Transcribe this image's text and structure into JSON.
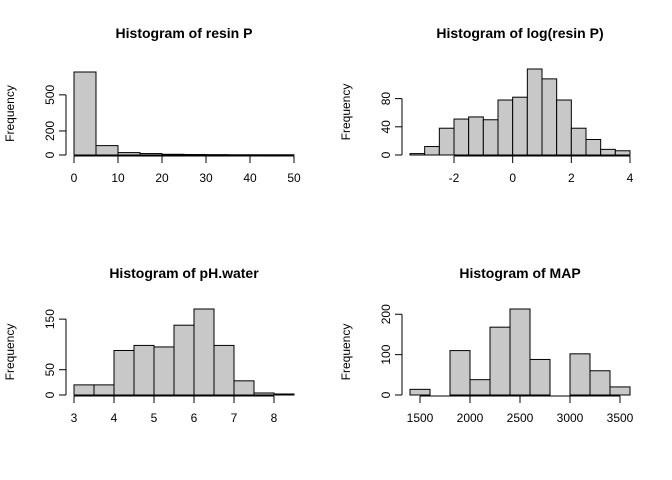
{
  "chart_data": [
    {
      "type": "bar",
      "title": "Histogram of resin P",
      "xlabel": "",
      "ylabel": "Frequency",
      "bin_edges": [
        0,
        5,
        10,
        15,
        20,
        25,
        30,
        35,
        40,
        45,
        50
      ],
      "values": [
        690,
        78,
        20,
        12,
        6,
        4,
        3,
        2,
        2,
        2
      ],
      "xlim": [
        0,
        50
      ],
      "ylim": [
        0,
        690
      ],
      "xticks": [
        0,
        10,
        20,
        30,
        40,
        50
      ],
      "yticks": [
        0,
        200,
        500
      ],
      "bar_color": "#c8c8c8"
    },
    {
      "type": "bar",
      "title": "Histogram of log(resin P)",
      "xlabel": "",
      "ylabel": "Frequency",
      "bin_edges": [
        -3.5,
        -3,
        -2.5,
        -2,
        -1.5,
        -1,
        -0.5,
        0,
        0.5,
        1,
        1.5,
        2,
        2.5,
        3,
        3.5,
        4
      ],
      "values": [
        2,
        12,
        38,
        51,
        54,
        50,
        78,
        82,
        122,
        108,
        78,
        38,
        22,
        8,
        6
      ],
      "xlim": [
        -3.5,
        4
      ],
      "ylim": [
        0,
        122
      ],
      "xticks": [
        -2,
        0,
        2,
        4
      ],
      "yticks": [
        0,
        40,
        80
      ],
      "bar_color": "#c8c8c8"
    },
    {
      "type": "bar",
      "title": "Histogram of pH.water",
      "xlabel": "",
      "ylabel": "Frequency",
      "bin_edges": [
        3,
        3.5,
        4,
        4.5,
        5,
        5.5,
        6,
        6.5,
        7,
        7.5,
        8,
        8.5
      ],
      "values": [
        20,
        20,
        88,
        98,
        95,
        138,
        170,
        98,
        28,
        4,
        2
      ],
      "xlim": [
        3,
        8.5
      ],
      "ylim": [
        0,
        170
      ],
      "xticks": [
        3,
        4,
        5,
        6,
        7,
        8
      ],
      "yticks": [
        0,
        50,
        150
      ],
      "bar_color": "#c8c8c8"
    },
    {
      "type": "bar",
      "title": "Histogram of MAP",
      "xlabel": "",
      "ylabel": "Frequency",
      "bin_edges": [
        1400,
        1600,
        1800,
        2000,
        2200,
        2400,
        2600,
        2800,
        3000,
        3200,
        3400,
        3600
      ],
      "values": [
        14,
        0,
        110,
        38,
        168,
        213,
        88,
        0,
        102,
        60,
        20
      ],
      "xlim": [
        1400,
        3600
      ],
      "ylim": [
        0,
        213
      ],
      "xticks": [
        1500,
        2000,
        2500,
        3000,
        3500
      ],
      "yticks": [
        0,
        100,
        200
      ],
      "bar_color": "#c8c8c8"
    }
  ]
}
